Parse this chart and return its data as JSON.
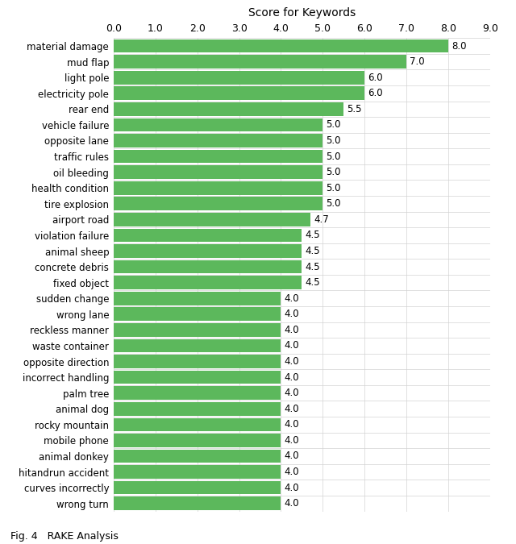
{
  "title": "Score for Keywords",
  "categories": [
    "wrong turn",
    "curves incorrectly",
    "hitandrun accident",
    "animal donkey",
    "mobile phone",
    "rocky mountain",
    "animal dog",
    "palm tree",
    "incorrect handling",
    "opposite direction",
    "waste container",
    "reckless manner",
    "wrong lane",
    "sudden change",
    "fixed object",
    "concrete debris",
    "animal sheep",
    "violation failure",
    "airport road",
    "tire explosion",
    "health condition",
    "oil bleeding",
    "traffic rules",
    "opposite lane",
    "vehicle failure",
    "rear end",
    "electricity pole",
    "light pole",
    "mud flap",
    "material damage"
  ],
  "values": [
    4.0,
    4.0,
    4.0,
    4.0,
    4.0,
    4.0,
    4.0,
    4.0,
    4.0,
    4.0,
    4.0,
    4.0,
    4.0,
    4.0,
    4.5,
    4.5,
    4.5,
    4.5,
    4.7,
    5.0,
    5.0,
    5.0,
    5.0,
    5.0,
    5.0,
    5.5,
    6.0,
    6.0,
    7.0,
    8.0
  ],
  "bar_color": "#5cb85c",
  "background_color": "#ffffff",
  "xlim": [
    0,
    9.0
  ],
  "xticks": [
    0.0,
    1.0,
    2.0,
    3.0,
    4.0,
    5.0,
    6.0,
    7.0,
    8.0,
    9.0
  ],
  "xtick_labels": [
    "0.0",
    "1.0",
    "2.0",
    "3.0",
    "4.0",
    "5.0",
    "6.0",
    "7.0",
    "8.0",
    "9.0"
  ],
  "figcaption": "Fig. 4   RAKE Analysis",
  "title_fontsize": 10,
  "label_fontsize": 8.5,
  "tick_fontsize": 9,
  "annotation_fontsize": 8.5
}
